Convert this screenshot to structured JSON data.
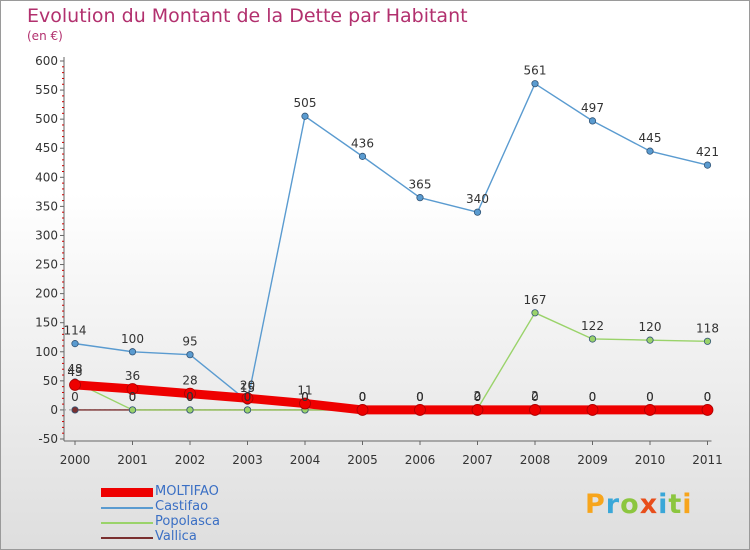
{
  "title": "Evolution du Montant de la Dette par Habitant",
  "subtitle": "(en €)",
  "colors": {
    "title": "#b2306e",
    "axis_text": "#333333",
    "legend_text": "#3a6fc4",
    "grid": "#c8c8c8"
  },
  "logo": {
    "letters": [
      {
        "ch": "P",
        "color": "#f7a51c"
      },
      {
        "ch": "r",
        "color": "#3aa7d8"
      },
      {
        "ch": "o",
        "color": "#8cc63f"
      },
      {
        "ch": "x",
        "color": "#e84e1b"
      },
      {
        "ch": "i",
        "color": "#3aa7d8"
      },
      {
        "ch": "t",
        "color": "#8cc63f"
      },
      {
        "ch": "i",
        "color": "#f7a51c"
      }
    ]
  },
  "chart_data": {
    "type": "line",
    "title": "Evolution du Montant de la Dette par Habitant",
    "subtitle": "(en €)",
    "x": [
      "2000",
      "2001",
      "2002",
      "2003",
      "2004",
      "2005",
      "2006",
      "2007",
      "2008",
      "2009",
      "2010",
      "2011"
    ],
    "ylim": [
      -50,
      600
    ],
    "yticks": [
      -50,
      0,
      50,
      100,
      150,
      200,
      250,
      300,
      350,
      400,
      450,
      500,
      550,
      600
    ],
    "grid": false,
    "legend_position": "bottom-left",
    "series": [
      {
        "name": "MOLTIFAO",
        "color": "#ee0000",
        "thick": true,
        "values": [
          43,
          36,
          28,
          20,
          11,
          0,
          0,
          0,
          0,
          0,
          0,
          0
        ]
      },
      {
        "name": "Castifao",
        "color": "#5a9bd0",
        "thick": false,
        "values": [
          114,
          100,
          95,
          15,
          505,
          436,
          365,
          340,
          561,
          497,
          445,
          421
        ]
      },
      {
        "name": "Popolasca",
        "color": "#9ad36a",
        "thick": false,
        "values": [
          48,
          0,
          0,
          0,
          0,
          0,
          0,
          2,
          167,
          122,
          120,
          118
        ]
      },
      {
        "name": "Vallica",
        "color": "#7a3030",
        "thick": false,
        "values": [
          0,
          0,
          0,
          0,
          0,
          0,
          0,
          0,
          2,
          0,
          0,
          0
        ]
      }
    ]
  }
}
